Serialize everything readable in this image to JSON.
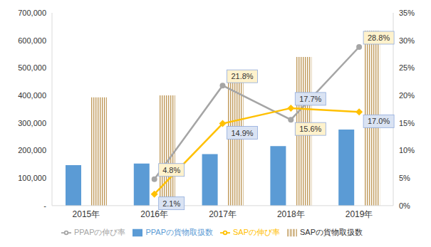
{
  "chart_data": {
    "type": "bar",
    "categories": [
      "2015年",
      "2016年",
      "2017年",
      "2018年",
      "2019年"
    ],
    "ylim": [
      0,
      700000
    ],
    "yticks": [
      {
        "value": 0,
        "label": "-"
      },
      {
        "value": 100000,
        "label": "100,000"
      },
      {
        "value": 200000,
        "label": "200,000"
      },
      {
        "value": 300000,
        "label": "300,000"
      },
      {
        "value": 400000,
        "label": "400,000"
      },
      {
        "value": 500000,
        "label": "500,000"
      },
      {
        "value": 600000,
        "label": "600,000"
      },
      {
        "value": 700000,
        "label": "700,000"
      }
    ],
    "y2lim": [
      0,
      35
    ],
    "y2ticks": [
      {
        "value": 0,
        "label": "0%"
      },
      {
        "value": 5,
        "label": "5%"
      },
      {
        "value": 10,
        "label": "10%"
      },
      {
        "value": 15,
        "label": "15%"
      },
      {
        "value": 20,
        "label": "20%"
      },
      {
        "value": 25,
        "label": "25%"
      },
      {
        "value": 30,
        "label": "30%"
      },
      {
        "value": 35,
        "label": "35%"
      }
    ],
    "grid": false,
    "legend": "bottom",
    "series": [
      {
        "name": "PPAPの貨物取扱数",
        "type": "bar",
        "color": "#5b9bd5",
        "values": [
          147000,
          153000,
          187000,
          216000,
          276000
        ]
      },
      {
        "name": "SAPの貨物取扱数",
        "type": "bar",
        "color": "#c09a5b",
        "values": [
          393000,
          400000,
          463000,
          540000,
          635000
        ]
      },
      {
        "name": "PPAPの伸び率",
        "type": "line",
        "axis": "y2",
        "color": "#a5a5a5",
        "marker": "circle",
        "data_labels": true,
        "values": [
          null,
          4.8,
          21.8,
          15.6,
          28.8
        ],
        "value_labels": [
          null,
          "4.8%",
          "21.8%",
          "15.6%",
          "28.8%"
        ]
      },
      {
        "name": "SAPの伸び率",
        "type": "line",
        "axis": "y2",
        "color": "#ffc000",
        "marker": "diamond",
        "data_labels": true,
        "values": [
          null,
          2.1,
          14.9,
          17.7,
          17.0
        ],
        "value_labels": [
          null,
          "2.1%",
          "14.9%",
          "17.7%",
          "17.0%"
        ]
      }
    ]
  }
}
